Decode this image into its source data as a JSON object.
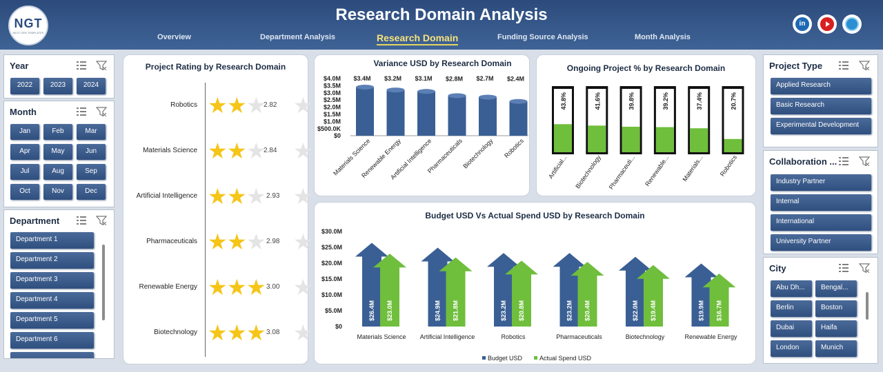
{
  "header": {
    "logo_text": "NGT",
    "logo_subtext": "NEXT GEN TEMPLATES",
    "title": "Research Domain Analysis",
    "nav": [
      "Overview",
      "Department Analysis",
      "Research Domain",
      "Funding Source Analysis",
      "Month Analysis"
    ],
    "active_nav": "Research Domain",
    "social": [
      "linkedin-icon",
      "youtube-icon",
      "website-icon"
    ]
  },
  "slicers": {
    "year": {
      "label": "Year",
      "items": [
        "2022",
        "2023",
        "2024"
      ]
    },
    "month": {
      "label": "Month",
      "items": [
        "Jan",
        "Feb",
        "Mar",
        "Apr",
        "May",
        "Jun",
        "Jul",
        "Aug",
        "Sep",
        "Oct",
        "Nov",
        "Dec"
      ]
    },
    "department": {
      "label": "Department",
      "items": [
        "Department 1",
        "Department 2",
        "Department 3",
        "Department 4",
        "Department 5",
        "Department 6"
      ]
    },
    "project_type": {
      "label": "Project Type",
      "items": [
        "Applied Research",
        "Basic Research",
        "Experimental Development"
      ]
    },
    "collaboration": {
      "label": "Collaboration ...",
      "items": [
        "Industry Partner",
        "Internal",
        "International",
        "University Partner"
      ]
    },
    "city": {
      "label": "City",
      "items": [
        "Abu Dh...",
        "Bengal...",
        "Berlin",
        "Boston",
        "Dubai",
        "Haifa",
        "London",
        "Munich"
      ]
    }
  },
  "colors": {
    "header": "#2c4b7c",
    "bar_blue": "#3a5f94",
    "bar_green": "#6fbe3c",
    "star": "#f5c518",
    "nav_active": "#f7e37b"
  },
  "chart_data": [
    {
      "type": "bar",
      "title": "Project Rating by Research Domain",
      "categories": [
        "Robotics",
        "Materials Science",
        "Artificial Intelligence",
        "Pharmaceuticals",
        "Renewable Energy",
        "Biotechnology"
      ],
      "values": [
        2.82,
        2.84,
        2.93,
        2.98,
        3.0,
        3.08
      ],
      "max": 5
    },
    {
      "type": "bar",
      "title": "Variance USD by Research Domain",
      "categories": [
        "Materials Science",
        "Renewable Energy",
        "Artificial Intelligence",
        "Pharmaceuticals",
        "Biotechnology",
        "Robotics"
      ],
      "values": [
        3.4,
        3.2,
        3.1,
        2.8,
        2.7,
        2.4
      ],
      "data_labels": [
        "$3.4M",
        "$3.2M",
        "$3.1M",
        "$2.8M",
        "$2.7M",
        "$2.4M"
      ],
      "ytick_labels": [
        "$4.0M",
        "$3.5M",
        "$3.0M",
        "$2.5M",
        "$2.0M",
        "$1.5M",
        "$1.0M",
        "$500.0K",
        "$0"
      ],
      "ylim": [
        0,
        4
      ]
    },
    {
      "type": "bar",
      "title": "Ongoing Project % by Research Domain",
      "categories": [
        "Artificial...",
        "Biotechnology",
        "Pharmaceuti...",
        "Renewable...",
        "Materials...",
        "Robotics"
      ],
      "values": [
        43.8,
        41.6,
        39.8,
        39.2,
        37.4,
        20.7
      ],
      "data_labels": [
        "43.8%",
        "41.6%",
        "39.8%",
        "39.2%",
        "37.4%",
        "20.7%"
      ],
      "ylim": [
        0,
        100
      ]
    },
    {
      "type": "bar",
      "title": "Budget USD Vs Actual Spend USD by Research Domain",
      "categories": [
        "Materials Science",
        "Artificial Intelligence",
        "Robotics",
        "Pharmaceuticals",
        "Biotechnology",
        "Renewable Energy"
      ],
      "series": [
        {
          "name": "Budget USD",
          "values": [
            26.4,
            24.9,
            23.2,
            23.2,
            22.0,
            19.9
          ],
          "labels": [
            "$26.4M",
            "$24.9M",
            "$23.2M",
            "$23.2M",
            "$22.0M",
            "$19.9M"
          ]
        },
        {
          "name": "Actual Spend USD",
          "values": [
            23.0,
            21.8,
            20.8,
            20.4,
            19.4,
            16.7
          ],
          "labels": [
            "$23.0M",
            "$21.8M",
            "$20.8M",
            "$20.4M",
            "$19.4M",
            "$16.7M"
          ]
        }
      ],
      "ytick_labels": [
        "$30.0M",
        "$25.0M",
        "$20.0M",
        "$15.0M",
        "$10.0M",
        "$5.0M",
        "$0"
      ],
      "ylim": [
        0,
        30
      ],
      "legend": "bottom"
    }
  ]
}
